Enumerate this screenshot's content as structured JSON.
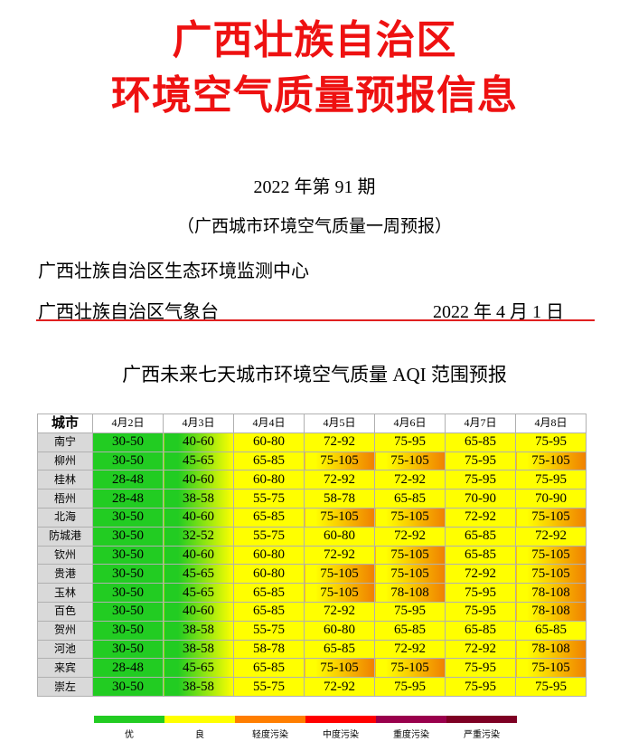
{
  "header": {
    "title_line1": "广西壮族自治区",
    "title_line2": "环境空气质量预报信息"
  },
  "issue": "2022 年第 91 期",
  "subtitle": "（广西城市环境空气质量一周预报）",
  "org1": "广西壮族自治区生态环境监测中心",
  "org2": "广西壮族自治区气象台",
  "date": "2022 年 4 月 1 日",
  "table": {
    "title": "广西未来七天城市环境空气质量 AQI 范围预报",
    "city_header": "城市",
    "dates": [
      "4月2日",
      "4月3日",
      "4月4日",
      "4月5日",
      "4月6日",
      "4月7日",
      "4月8日"
    ],
    "rows": [
      {
        "city": "南宁",
        "values": [
          "30-50",
          "40-60",
          "60-80",
          "72-92",
          "75-95",
          "65-85",
          "75-95"
        ]
      },
      {
        "city": "柳州",
        "values": [
          "30-50",
          "45-65",
          "65-85",
          "75-105",
          "75-105",
          "75-95",
          "75-105"
        ]
      },
      {
        "city": "桂林",
        "values": [
          "28-48",
          "40-60",
          "60-80",
          "72-92",
          "72-92",
          "75-95",
          "75-95"
        ]
      },
      {
        "city": "梧州",
        "values": [
          "28-48",
          "38-58",
          "55-75",
          "58-78",
          "65-85",
          "70-90",
          "70-90"
        ]
      },
      {
        "city": "北海",
        "values": [
          "30-50",
          "40-60",
          "65-85",
          "75-105",
          "75-105",
          "72-92",
          "75-105"
        ]
      },
      {
        "city": "防城港",
        "values": [
          "30-50",
          "32-52",
          "55-75",
          "60-80",
          "72-92",
          "65-85",
          "72-92"
        ]
      },
      {
        "city": "钦州",
        "values": [
          "30-50",
          "40-60",
          "60-80",
          "72-92",
          "75-105",
          "65-85",
          "75-105"
        ]
      },
      {
        "city": "贵港",
        "values": [
          "30-50",
          "45-65",
          "60-80",
          "75-105",
          "75-105",
          "72-92",
          "75-105"
        ]
      },
      {
        "city": "玉林",
        "values": [
          "30-50",
          "45-65",
          "65-85",
          "75-105",
          "78-108",
          "75-95",
          "78-108"
        ]
      },
      {
        "city": "百色",
        "values": [
          "30-50",
          "40-60",
          "65-85",
          "72-92",
          "75-95",
          "75-95",
          "78-108"
        ]
      },
      {
        "city": "贺州",
        "values": [
          "30-50",
          "38-58",
          "55-75",
          "60-80",
          "65-85",
          "65-85",
          "65-85"
        ]
      },
      {
        "city": "河池",
        "values": [
          "30-50",
          "38-58",
          "58-78",
          "65-85",
          "72-92",
          "72-92",
          "78-108"
        ]
      },
      {
        "city": "来宾",
        "values": [
          "28-48",
          "45-65",
          "65-85",
          "75-105",
          "75-105",
          "75-95",
          "75-105"
        ]
      },
      {
        "city": "崇左",
        "values": [
          "30-50",
          "38-58",
          "55-75",
          "72-92",
          "75-95",
          "75-95",
          "75-95"
        ]
      }
    ]
  },
  "colors": {
    "good": "#22cc22",
    "moderate": "#ffff00",
    "light": "#f08000",
    "medium": "#ff0000",
    "heavy": "#99004c",
    "severe": "#7e0023"
  },
  "legend": [
    {
      "label": "优",
      "color": "#22cc22"
    },
    {
      "label": "良",
      "color": "#ffff00"
    },
    {
      "label": "轻度污染",
      "color": "#ff7e00"
    },
    {
      "label": "中度污染",
      "color": "#ff0000"
    },
    {
      "label": "重度污染",
      "color": "#99004c"
    },
    {
      "label": "严重污染",
      "color": "#7e0023"
    }
  ]
}
